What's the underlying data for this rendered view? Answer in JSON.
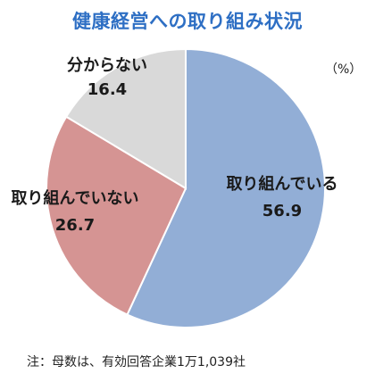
{
  "chart_data": {
    "type": "pie",
    "title": "健康経営への取り組み状況",
    "unit": "（%）",
    "categories": [
      "取り組んでいる",
      "取り組んでいない",
      "分からない"
    ],
    "values": [
      56.9,
      26.7,
      16.4
    ],
    "value_labels": [
      "56.9",
      "26.7",
      "16.4"
    ],
    "colors": [
      "#92aed6",
      "#d59493",
      "#d9d9d9"
    ],
    "start_at": "12 o'clock",
    "direction": "clockwise"
  },
  "footnote": "注：母数は、有効回答企業1万1,039社"
}
